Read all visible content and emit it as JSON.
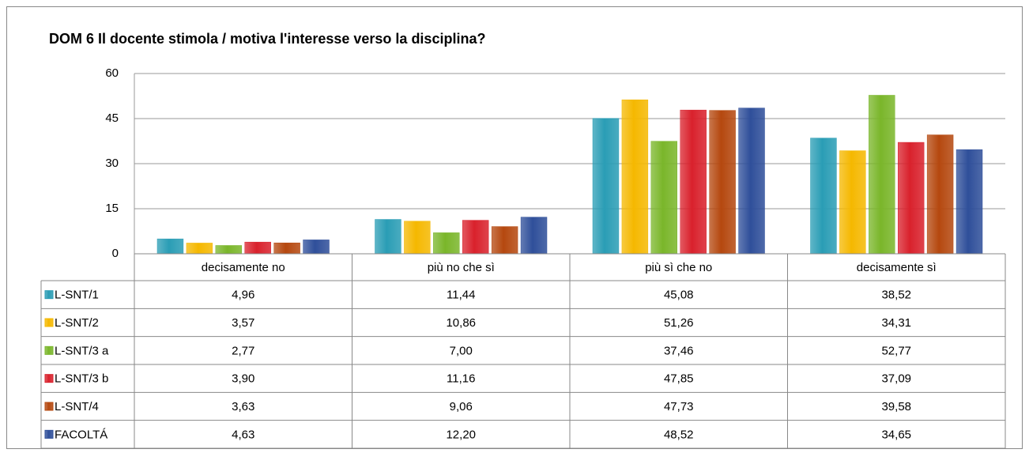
{
  "chart_data": {
    "type": "bar",
    "title": "DOM 6 Il docente stimola / motiva l'interesse verso la disciplina?",
    "categories": [
      "decisamente no",
      "più no che sì",
      "più sì che no",
      "decisamente sì"
    ],
    "series": [
      {
        "name": "L-SNT/1",
        "color": "#2a9db5",
        "values": [
          4.96,
          11.44,
          45.08,
          38.52
        ],
        "value_labels": [
          "4,96",
          "11,44",
          "45,08",
          "38,52"
        ]
      },
      {
        "name": "L-SNT/2",
        "color": "#f5b800",
        "values": [
          3.57,
          10.86,
          51.26,
          34.31
        ],
        "value_labels": [
          "3,57",
          "10,86",
          "51,26",
          "34,31"
        ]
      },
      {
        "name": "L-SNT/3 a",
        "color": "#7ab62a",
        "values": [
          2.77,
          7.0,
          37.46,
          52.77
        ],
        "value_labels": [
          "2,77",
          "7,00",
          "37,46",
          "52,77"
        ]
      },
      {
        "name": "L-SNT/3 b",
        "color": "#d9212c",
        "values": [
          3.9,
          11.16,
          47.85,
          37.09
        ],
        "value_labels": [
          "3,90",
          "11,16",
          "47,85",
          "37,09"
        ]
      },
      {
        "name": "L-SNT/4",
        "color": "#b5480f",
        "values": [
          3.63,
          9.06,
          47.73,
          39.58
        ],
        "value_labels": [
          "3,63",
          "9,06",
          "47,73",
          "39,58"
        ]
      },
      {
        "name": "FACOLTÁ",
        "color": "#2f4f9a",
        "values": [
          4.63,
          12.2,
          48.52,
          34.65
        ],
        "value_labels": [
          "4,63",
          "12,20",
          "48,52",
          "34,65"
        ]
      }
    ],
    "ylim": [
      0,
      60
    ],
    "yticks": [
      0,
      15,
      30,
      45,
      60
    ],
    "grid": true,
    "legend": "table"
  }
}
